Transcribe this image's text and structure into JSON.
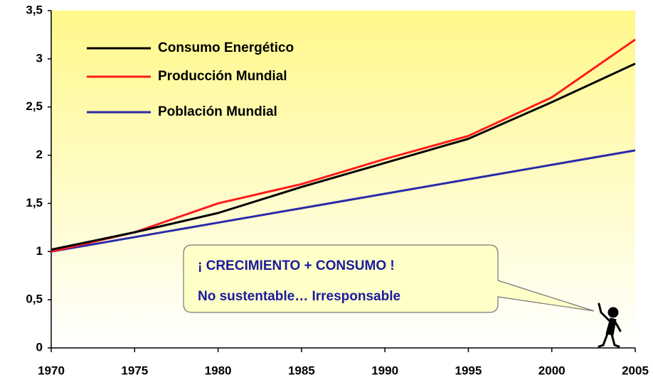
{
  "chart_data": {
    "type": "line",
    "x": [
      1970,
      1975,
      1980,
      1985,
      1990,
      1995,
      2000,
      2005
    ],
    "series": [
      {
        "name": "Consumo Energético",
        "color": "#000000",
        "values": [
          1.02,
          1.2,
          1.4,
          1.67,
          1.92,
          2.17,
          2.55,
          2.95
        ]
      },
      {
        "name": "Producción Mundial",
        "color": "#ff1a1a",
        "values": [
          1.0,
          1.2,
          1.5,
          1.7,
          1.96,
          2.2,
          2.6,
          3.2
        ]
      },
      {
        "name": "Población Mundial",
        "color": "#2a2aa8",
        "values": [
          1.0,
          1.15,
          1.3,
          1.45,
          1.6,
          1.75,
          1.9,
          2.05
        ]
      }
    ],
    "xlim": [
      1970,
      2005
    ],
    "xticks": [
      1970,
      1975,
      1980,
      1985,
      1990,
      1995,
      2000,
      2005
    ],
    "ylim": [
      0,
      3.5
    ],
    "yticks": [
      0,
      {
        "value": 0.5,
        "label": "0,5"
      },
      1,
      {
        "value": 1.5,
        "label": "1,5"
      },
      2,
      {
        "value": 2.5,
        "label": "2,5"
      },
      3,
      {
        "value": 3.5,
        "label": "3,5"
      }
    ],
    "annotations": [
      "¡ CRECIMIENTO + CONSUMO !",
      "No sustentable… Irresponsable"
    ]
  }
}
